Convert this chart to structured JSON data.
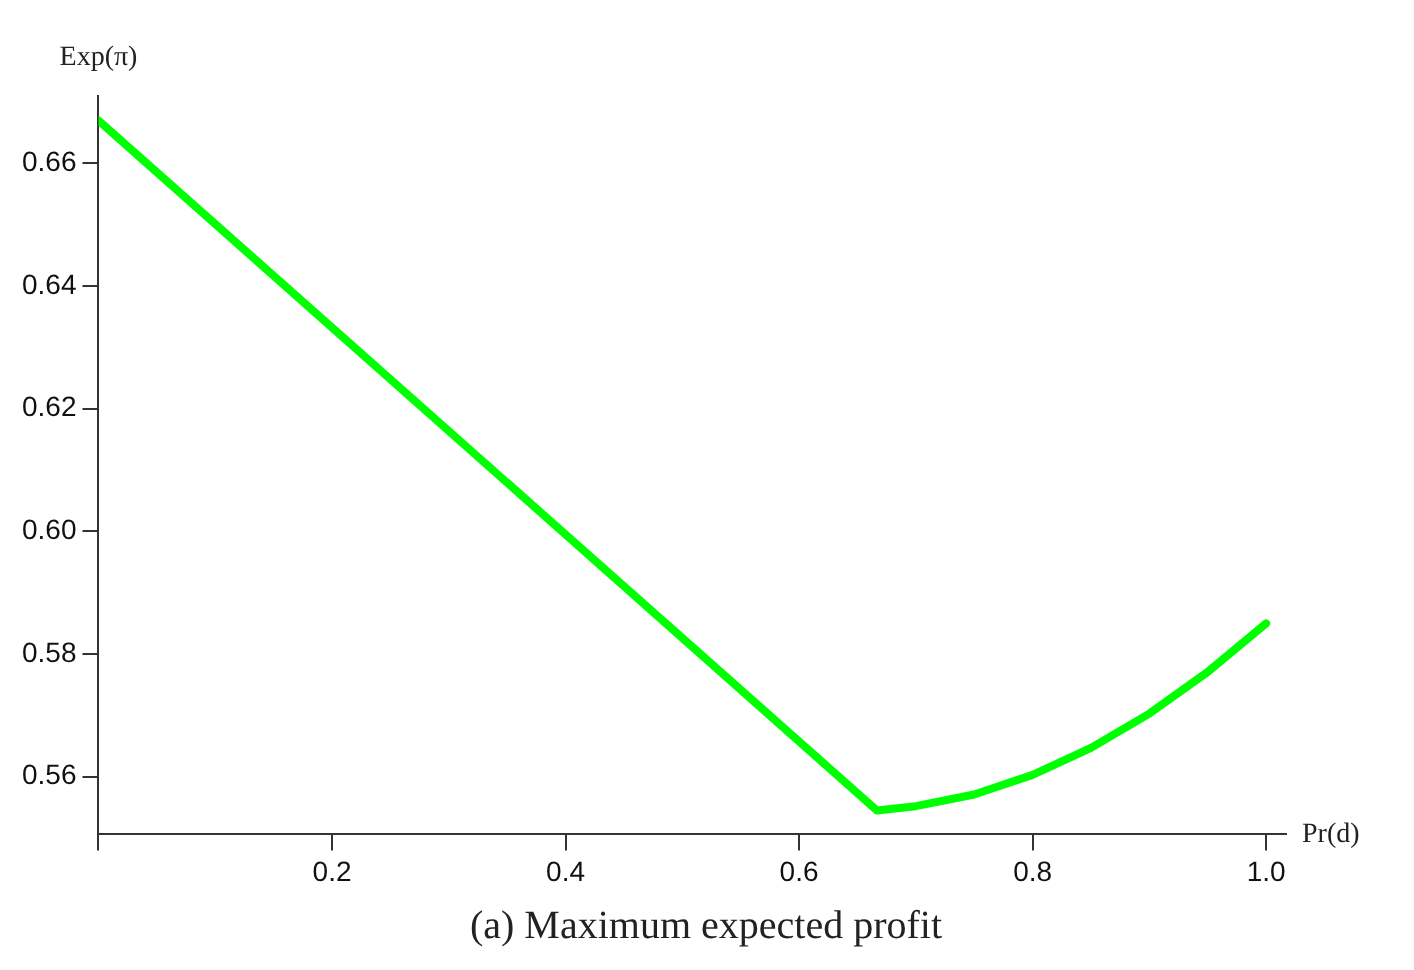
{
  "chart_data": {
    "type": "line",
    "title": "(a) Maximum expected profit",
    "xlabel": "Pr(d)",
    "ylabel": "Exp(π)",
    "x": [
      0,
      0.6667,
      0.7,
      0.75,
      0.8,
      0.85,
      0.9,
      0.95,
      1.0
    ],
    "series": [
      {
        "color": "#00ff00",
        "values": [
          0.667,
          0.5545,
          0.5552,
          0.5571,
          0.5603,
          0.5647,
          0.5703,
          0.5771,
          0.585
        ]
      }
    ],
    "xlim": [
      0,
      1.017
    ],
    "ylim": [
      0.5506,
      0.671
    ],
    "xticks": [
      {
        "value": 0,
        "label": null
      },
      0.2,
      0.4,
      0.6,
      0.8,
      {
        "value": 1,
        "label": "1.0"
      }
    ],
    "yticks": [
      0.56,
      0.58,
      {
        "value": 0.6,
        "label": "0.60"
      },
      0.62,
      0.64,
      0.66
    ],
    "grid": false,
    "legend": false,
    "marker": "none",
    "line_style": "solid"
  }
}
